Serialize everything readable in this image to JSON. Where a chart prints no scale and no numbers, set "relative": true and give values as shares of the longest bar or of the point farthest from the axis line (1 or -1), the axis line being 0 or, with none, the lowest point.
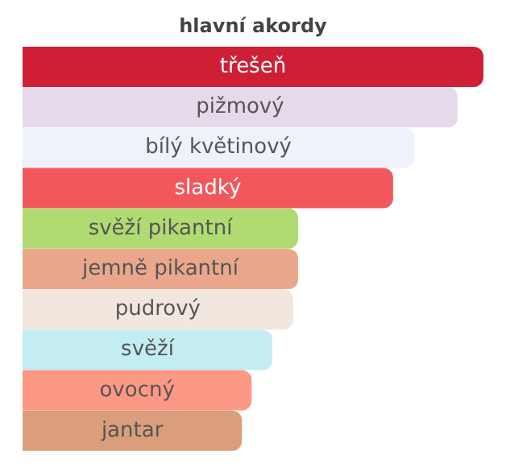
{
  "chart_data": {
    "type": "bar",
    "orientation": "horizontal",
    "relative": true,
    "title": "hlavní akordy",
    "categories": [
      "třešeň",
      "pižmový",
      "bílý květinový",
      "sladký",
      "svěží pikantní",
      "jemně pikantní",
      "pudrový",
      "svěží",
      "ovocný",
      "jantar"
    ],
    "values": [
      1,
      0.944,
      0.85,
      0.804,
      0.598,
      0.598,
      0.587,
      0.542,
      0.497,
      0.476
    ],
    "colors": [
      "#cf1f35",
      "#e6d9ea",
      "#eff1fb",
      "#f2585b",
      "#b0db72",
      "#eaa78c",
      "#f1e7df",
      "#c3edf2",
      "#fd9886",
      "#da9e7c"
    ]
  }
}
